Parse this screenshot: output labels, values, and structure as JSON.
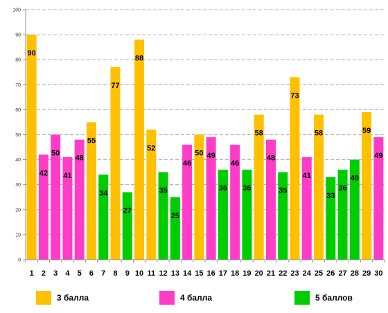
{
  "chart_data": {
    "type": "bar",
    "categories": [
      "1",
      "2",
      "3",
      "4",
      "5",
      "6",
      "7",
      "8",
      "9",
      "10",
      "11",
      "12",
      "13",
      "14",
      "15",
      "16",
      "17",
      "18",
      "19",
      "20",
      "21",
      "22",
      "23",
      "24",
      "25",
      "26",
      "27",
      "28",
      "29",
      "30"
    ],
    "values": [
      90,
      42,
      50,
      41,
      48,
      55,
      34,
      77,
      27,
      88,
      52,
      35,
      25,
      46,
      50,
      49,
      36,
      46,
      36,
      58,
      48,
      35,
      73,
      41,
      58,
      33,
      36,
      40,
      59,
      49
    ],
    "groups": [
      "3",
      "4",
      "4",
      "4",
      "4",
      "3",
      "5",
      "3",
      "5",
      "3",
      "3",
      "5",
      "5",
      "4",
      "3",
      "4",
      "5",
      "4",
      "5",
      "3",
      "4",
      "5",
      "3",
      "4",
      "3",
      "5",
      "5",
      "5",
      "3",
      "4"
    ],
    "series": [
      {
        "key": "3",
        "name": "3 балла",
        "color": "#FFC000"
      },
      {
        "key": "4",
        "name": "4 балла",
        "color": "#FF3CC8"
      },
      {
        "key": "5",
        "name": "5 баллов",
        "color": "#00CC00"
      }
    ],
    "yticks": [
      0,
      10,
      20,
      30,
      40,
      50,
      60,
      70,
      80,
      90,
      100
    ],
    "ylim": [
      0,
      100
    ],
    "grid": true,
    "legend_position": "bottom",
    "title": "",
    "xlabel": "",
    "ylabel": ""
  }
}
